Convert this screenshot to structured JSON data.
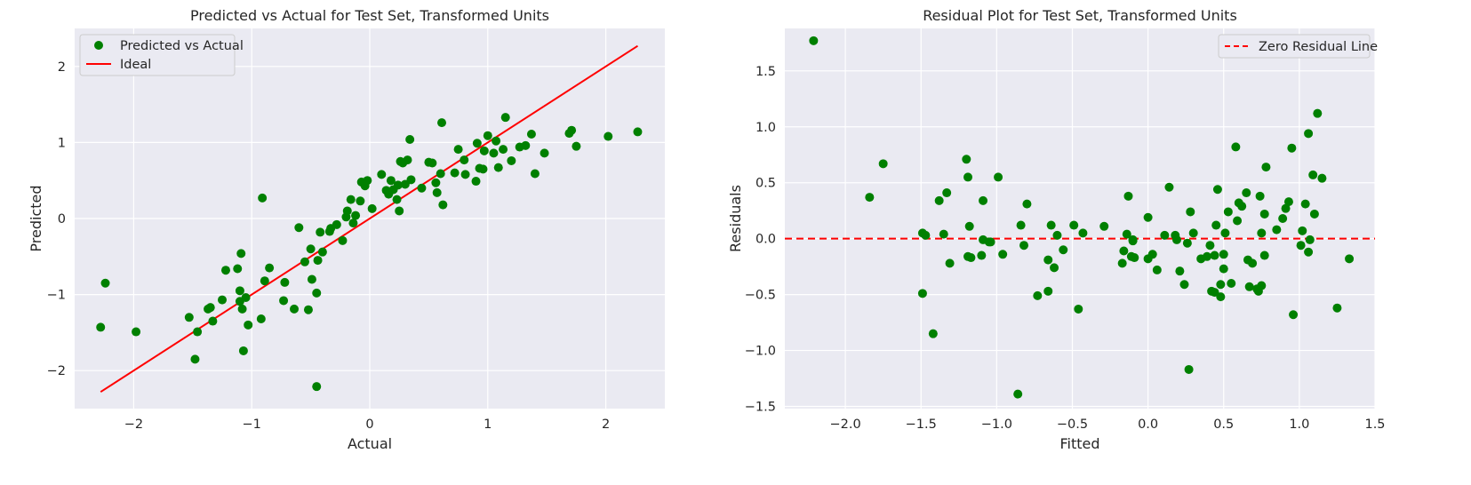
{
  "colors": {
    "points": "#008000",
    "ideal": "#ff0000",
    "zero_line": "#ff0000"
  },
  "chart_data": [
    {
      "type": "scatter",
      "title": "Predicted vs Actual for Test Set, Transformed Units",
      "xlabel": "Actual",
      "ylabel": "Predicted",
      "xlim": [
        -2.5,
        2.5
      ],
      "ylim": [
        -2.5,
        2.5
      ],
      "xticks": [
        -2,
        -1,
        0,
        1,
        2
      ],
      "yticks": [
        -2,
        -1,
        0,
        1,
        2
      ],
      "xtick_labels": [
        "−2",
        "−1",
        "0",
        "1",
        "2"
      ],
      "ytick_labels": [
        "−2",
        "−1",
        "0",
        "1",
        "2"
      ],
      "grid": true,
      "legend_position": "top-left",
      "series": [
        {
          "name": "Predicted vs Actual",
          "kind": "points",
          "x": [
            -2.28,
            -2.24,
            -1.98,
            -1.53,
            -1.48,
            -1.46,
            -1.37,
            -1.35,
            -1.33,
            -1.25,
            -1.22,
            -1.12,
            -1.1,
            -1.1,
            -1.09,
            -1.08,
            -1.07,
            -1.05,
            -1.03,
            -0.92,
            -0.91,
            -0.89,
            -0.85,
            -0.73,
            -0.72,
            -0.64,
            -0.55,
            -0.52,
            -0.5,
            -0.49,
            -0.45,
            -0.44,
            -0.42,
            -0.4,
            -0.34,
            -0.33,
            -0.28,
            -0.23,
            -0.2,
            -0.19,
            -0.16,
            -0.14,
            -0.12,
            -0.08,
            -0.07,
            -0.05,
            -0.04,
            -0.02,
            0.02,
            0.1,
            0.14,
            0.16,
            0.18,
            0.2,
            0.23,
            0.24,
            0.26,
            0.28,
            0.3,
            0.32,
            0.34,
            0.35,
            0.44,
            0.5,
            0.53,
            0.56,
            0.57,
            0.6,
            0.61,
            0.62,
            0.72,
            0.75,
            0.8,
            0.81,
            0.9,
            0.91,
            0.93,
            0.96,
            0.97,
            1.0,
            1.05,
            1.07,
            1.09,
            1.13,
            1.15,
            1.2,
            1.27,
            1.32,
            1.37,
            1.4,
            1.48,
            1.69,
            1.71,
            1.75,
            2.02,
            2.27,
            -0.45,
            0.25,
            -0.6
          ],
          "y": [
            -1.43,
            -0.85,
            -1.49,
            -1.3,
            -1.85,
            -1.49,
            -1.19,
            -1.17,
            -1.35,
            -1.07,
            -0.68,
            -0.66,
            -0.95,
            -1.09,
            -0.46,
            -1.19,
            -1.74,
            -1.04,
            -1.4,
            -1.32,
            0.27,
            -0.82,
            -0.65,
            -1.08,
            -0.84,
            -1.19,
            -0.57,
            -1.2,
            -0.4,
            -0.8,
            -0.98,
            -0.55,
            -0.18,
            -0.44,
            -0.17,
            -0.13,
            -0.08,
            -0.29,
            0.02,
            0.1,
            0.25,
            -0.06,
            0.04,
            0.23,
            0.48,
            0.46,
            0.43,
            0.5,
            0.13,
            0.58,
            0.37,
            0.32,
            0.5,
            0.38,
            0.25,
            0.44,
            0.75,
            0.73,
            0.45,
            0.77,
            1.04,
            0.51,
            0.4,
            0.74,
            0.73,
            0.47,
            0.34,
            0.59,
            1.26,
            0.18,
            0.6,
            0.91,
            0.77,
            0.58,
            0.49,
            0.99,
            0.66,
            0.65,
            0.89,
            1.09,
            0.86,
            1.02,
            0.67,
            0.91,
            1.33,
            0.76,
            0.94,
            0.96,
            1.11,
            0.59,
            0.86,
            1.12,
            1.16,
            0.95,
            1.08,
            1.14,
            -2.21,
            0.1,
            -0.12
          ]
        },
        {
          "name": "Ideal",
          "kind": "line",
          "x": [
            -2.28,
            2.27
          ],
          "y": [
            -2.28,
            2.27
          ]
        }
      ]
    },
    {
      "type": "scatter",
      "title": "Residual Plot for Test Set, Transformed Units",
      "xlabel": "Fitted",
      "ylabel": "Residuals",
      "xlim": [
        -2.4,
        1.5
      ],
      "ylim": [
        -1.52,
        1.88
      ],
      "xticks": [
        -2.0,
        -1.5,
        -1.0,
        -0.5,
        0.0,
        0.5,
        1.0,
        1.5
      ],
      "yticks": [
        -1.5,
        -1.0,
        -0.5,
        0.0,
        0.5,
        1.0,
        1.5
      ],
      "xtick_labels": [
        "−2.0",
        "−1.5",
        "−1.0",
        "−0.5",
        "0.0",
        "0.5",
        "1.0",
        "1.5"
      ],
      "ytick_labels": [
        "−1.5",
        "−1.0",
        "−0.5",
        "0.0",
        "0.5",
        "1.0",
        "1.5"
      ],
      "grid": true,
      "legend_position": "top-right",
      "series": [
        {
          "name": "",
          "kind": "points",
          "x": [
            -2.21,
            -1.84,
            -1.75,
            -1.49,
            -1.49,
            -1.47,
            -1.42,
            -1.38,
            -1.35,
            -1.33,
            -1.31,
            -1.2,
            -1.19,
            -1.19,
            -1.18,
            -1.17,
            -1.1,
            -1.09,
            -1.09,
            -1.05,
            -1.04,
            -0.99,
            -0.96,
            -0.86,
            -0.84,
            -0.82,
            -0.8,
            -0.73,
            -0.66,
            -0.66,
            -0.64,
            -0.6,
            -0.56,
            -0.49,
            -0.46,
            -0.43,
            -0.29,
            -0.17,
            -0.16,
            -0.14,
            -0.13,
            -0.11,
            -0.1,
            -0.1,
            -0.09,
            0.0,
            0.0,
            0.03,
            0.06,
            0.11,
            0.14,
            0.18,
            0.19,
            0.21,
            0.24,
            0.26,
            0.28,
            0.3,
            0.35,
            0.39,
            0.41,
            0.42,
            0.44,
            0.44,
            0.45,
            0.46,
            0.48,
            0.48,
            0.5,
            0.5,
            0.51,
            0.53,
            0.55,
            0.58,
            0.59,
            0.6,
            0.62,
            0.65,
            0.66,
            0.67,
            0.69,
            0.72,
            0.73,
            0.74,
            0.75,
            0.75,
            0.77,
            0.77,
            0.78,
            0.85,
            0.89,
            0.91,
            0.93,
            0.95,
            0.96,
            1.01,
            1.02,
            1.04,
            1.06,
            1.06,
            1.07,
            1.09,
            1.1,
            1.12,
            1.15,
            1.25,
            1.33,
            0.27,
            -0.62
          ],
          "y": [
            1.77,
            0.37,
            0.67,
            -0.49,
            0.05,
            0.03,
            -0.85,
            0.34,
            0.04,
            0.41,
            -0.22,
            0.71,
            0.55,
            -0.16,
            0.11,
            -0.17,
            -0.15,
            0.34,
            -0.01,
            -0.03,
            -0.03,
            0.55,
            -0.14,
            -1.39,
            0.12,
            -0.06,
            0.31,
            -0.51,
            -0.47,
            -0.19,
            0.12,
            0.03,
            -0.1,
            0.12,
            -0.63,
            0.05,
            0.11,
            -0.22,
            -0.11,
            0.04,
            0.38,
            -0.16,
            -0.01,
            -0.02,
            -0.17,
            0.19,
            -0.18,
            -0.14,
            -0.28,
            0.03,
            0.46,
            0.03,
            -0.01,
            -0.29,
            -0.41,
            -0.04,
            0.24,
            0.05,
            -0.18,
            -0.16,
            -0.06,
            -0.47,
            -0.15,
            -0.48,
            0.12,
            0.44,
            -0.52,
            -0.41,
            -0.14,
            -0.27,
            0.05,
            0.24,
            -0.4,
            0.82,
            0.16,
            0.32,
            0.29,
            0.41,
            -0.19,
            -0.43,
            -0.22,
            -0.45,
            -0.47,
            0.38,
            -0.42,
            0.05,
            0.22,
            -0.15,
            0.64,
            0.08,
            0.18,
            0.27,
            0.33,
            0.81,
            -0.68,
            -0.06,
            0.07,
            0.31,
            0.94,
            -0.12,
            -0.01,
            0.57,
            0.22,
            1.12,
            0.54,
            -0.62,
            -0.18,
            -1.17,
            -0.26
          ]
        },
        {
          "name": "Zero Residual Line",
          "kind": "hline",
          "y": 0.0
        }
      ]
    }
  ]
}
